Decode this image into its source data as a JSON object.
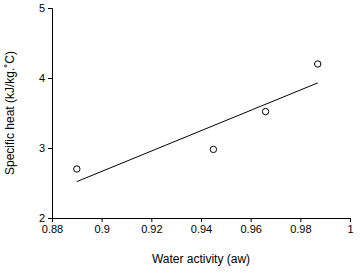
{
  "chart_data": {
    "type": "scatter",
    "x_label": "Water activity (aw)",
    "y_label": "Specific heat (kJ/kg.˚C)",
    "xlim": [
      0.88,
      1
    ],
    "xticks": [
      0.88,
      0.9,
      0.92,
      0.94,
      0.96,
      0.98,
      1
    ],
    "ylim": [
      2,
      5
    ],
    "yticks": [
      2,
      3,
      4,
      5
    ],
    "grid": false,
    "series": [
      {
        "type": "scatter",
        "marker": "circle",
        "color": "#000000",
        "x": [
          0.89,
          0.945,
          0.966,
          0.987
        ],
        "values": [
          2.7,
          2.98,
          3.52,
          4.2
        ]
      },
      {
        "type": "line",
        "line_style": "solid",
        "color": "#000000",
        "x": [
          0.89,
          0.987
        ],
        "values": [
          2.52,
          3.93
        ]
      }
    ]
  }
}
